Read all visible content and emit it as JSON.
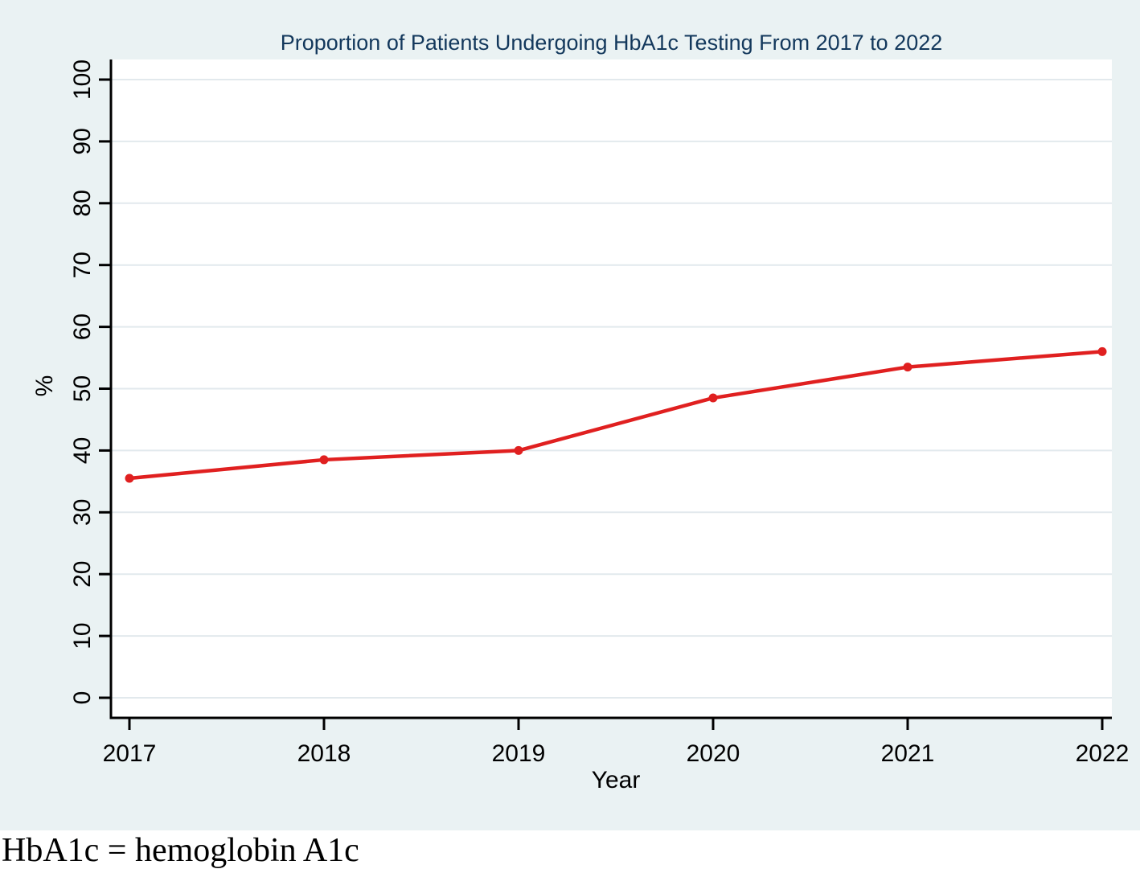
{
  "figure": {
    "footnote": "HbA1c = hemoglobin A1c"
  },
  "chart_data": {
    "type": "line",
    "title": "Proportion of Patients Undergoing HbA1c Testing From 2017 to 2022",
    "xlabel": "Year",
    "ylabel": "%",
    "categories": [
      "2017",
      "2018",
      "2019",
      "2020",
      "2021",
      "2022"
    ],
    "series": [
      {
        "values": [
          35.5,
          38.5,
          40,
          48.5,
          53.5,
          56
        ],
        "color": "#e02020",
        "marker": "circle"
      }
    ],
    "ylim": [
      0,
      100
    ],
    "yticks": [
      0,
      10,
      20,
      30,
      40,
      50,
      60,
      70,
      80,
      90,
      100
    ],
    "grid": "horizontal",
    "legend": "none",
    "colors": {
      "figure_background": "#eaf2f3",
      "plot_background": "#ffffff",
      "gridline": "#e2e9ed",
      "axis": "#000000",
      "title_text": "#13385c",
      "tick_text": "#000000"
    }
  }
}
